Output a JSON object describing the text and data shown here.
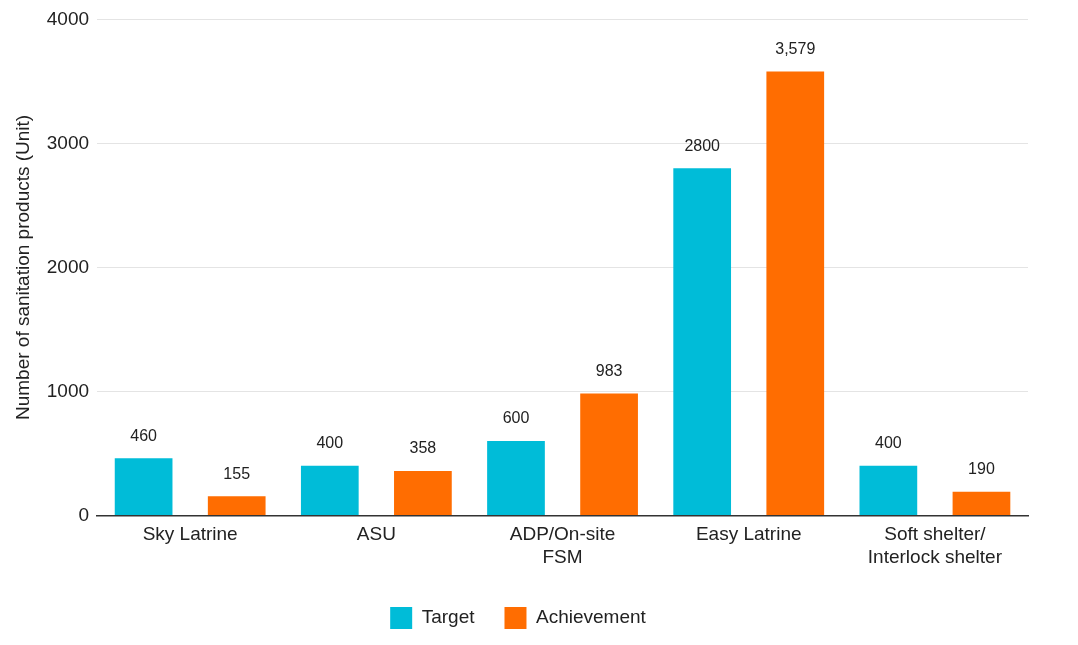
{
  "chart_data": {
    "type": "bar",
    "ylabel": "Number of sanitation products (Unit)",
    "categories": [
      "Sky Latrine",
      "ASU",
      "ADP/On-site\nFSM",
      "Easy Latrine",
      "Soft shelter/\nInterlock shelter"
    ],
    "series": [
      {
        "name": "Target",
        "color": "#00bcd8",
        "values": [
          460,
          400,
          600,
          2800,
          400
        ],
        "value_labels": [
          "460",
          "400",
          "600",
          "2800",
          "400"
        ]
      },
      {
        "name": "Achievement",
        "color": "#ff6d01",
        "values": [
          155,
          358,
          983,
          3579,
          190
        ],
        "value_labels": [
          "155",
          "358",
          "983",
          "3,579",
          "190"
        ]
      }
    ],
    "ylim": [
      0,
      4000
    ],
    "yticks": [
      0,
      1000,
      2000,
      3000,
      4000
    ],
    "grid": "y",
    "legend": "bottom"
  }
}
